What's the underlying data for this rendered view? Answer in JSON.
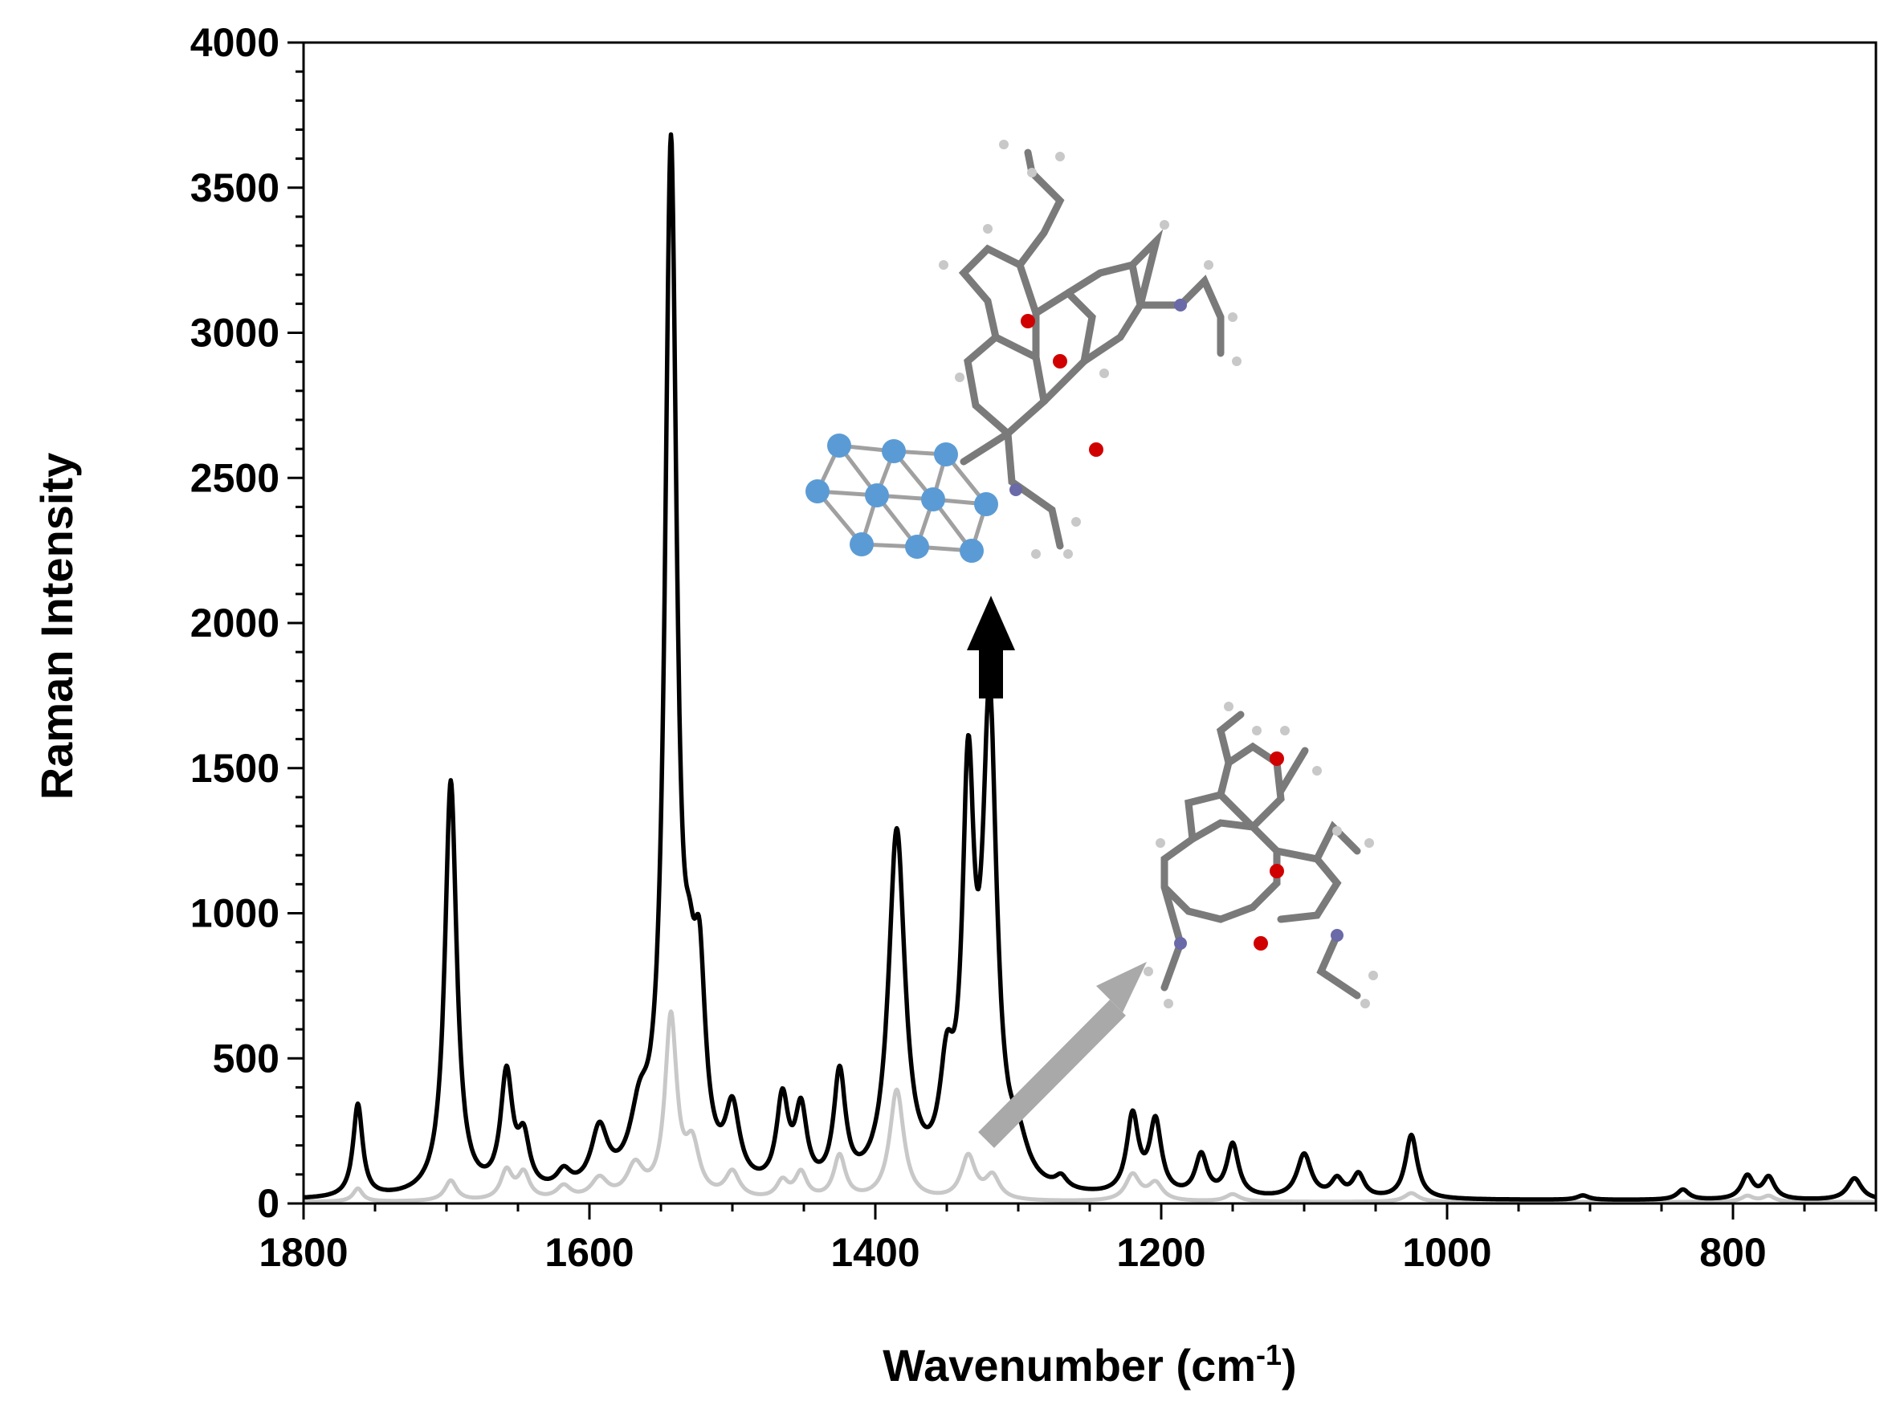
{
  "chart_data": {
    "type": "line",
    "title": "",
    "xlabel": "Wavenumber (cm",
    "xlabel_sup": "-1",
    "xlabel_close": ")",
    "ylabel": "Raman Intensity",
    "xlim": [
      1800,
      700
    ],
    "x_reversed": true,
    "ylim": [
      0,
      4000
    ],
    "xticks": [
      1800,
      1600,
      1400,
      1200,
      1000,
      800
    ],
    "yticks": [
      0,
      500,
      1000,
      1500,
      2000,
      2500,
      3000,
      3500,
      4000
    ],
    "grid": false,
    "legend": "none",
    "series": [
      {
        "color": "#000000",
        "baseline": 10,
        "peaks": [
          [
            1762,
            320,
            4
          ],
          [
            1697,
            1430,
            5
          ],
          [
            1658,
            400,
            5
          ],
          [
            1646,
            170,
            5
          ],
          [
            1618,
            60,
            6
          ],
          [
            1593,
            200,
            7
          ],
          [
            1565,
            200,
            8
          ],
          [
            1543,
            3550,
            5
          ],
          [
            1530,
            350,
            5
          ],
          [
            1523,
            600,
            5
          ],
          [
            1500,
            250,
            6
          ],
          [
            1465,
            300,
            5
          ],
          [
            1452,
            260,
            5
          ],
          [
            1425,
            390,
            5
          ],
          [
            1385,
            1230,
            7
          ],
          [
            1350,
            330,
            6
          ],
          [
            1335,
            1300,
            5
          ],
          [
            1320,
            1600,
            6
          ],
          [
            1300,
            120,
            8
          ],
          [
            1270,
            40,
            5
          ],
          [
            1220,
            270,
            5
          ],
          [
            1204,
            250,
            5
          ],
          [
            1172,
            140,
            5
          ],
          [
            1150,
            180,
            5
          ],
          [
            1100,
            150,
            6
          ],
          [
            1077,
            60,
            5
          ],
          [
            1062,
            80,
            5
          ],
          [
            1025,
            220,
            5
          ],
          [
            905,
            15,
            5
          ],
          [
            835,
            35,
            5
          ],
          [
            790,
            80,
            5
          ],
          [
            775,
            75,
            5
          ],
          [
            715,
            75,
            6
          ]
        ]
      },
      {
        "color": "#c8c8c8",
        "baseline": 5,
        "peaks": [
          [
            1762,
            45,
            4
          ],
          [
            1697,
            70,
            5
          ],
          [
            1658,
            100,
            5
          ],
          [
            1646,
            90,
            5
          ],
          [
            1618,
            45,
            6
          ],
          [
            1593,
            70,
            7
          ],
          [
            1568,
            110,
            7
          ],
          [
            1543,
            620,
            5
          ],
          [
            1528,
            170,
            6
          ],
          [
            1500,
            90,
            6
          ],
          [
            1465,
            60,
            5
          ],
          [
            1452,
            90,
            5
          ],
          [
            1425,
            150,
            5
          ],
          [
            1385,
            380,
            6
          ],
          [
            1335,
            150,
            6
          ],
          [
            1318,
            80,
            6
          ],
          [
            1220,
            90,
            6
          ],
          [
            1204,
            60,
            6
          ],
          [
            1150,
            25,
            6
          ],
          [
            1025,
            30,
            6
          ],
          [
            790,
            20,
            5
          ],
          [
            775,
            20,
            5
          ]
        ]
      }
    ],
    "annotations": [
      {
        "type": "arrow",
        "color": "#000000",
        "direction": "up",
        "at_x": 1315
      },
      {
        "type": "arrow",
        "color": "#a9a9a9",
        "direction": "up-right"
      }
    ]
  }
}
